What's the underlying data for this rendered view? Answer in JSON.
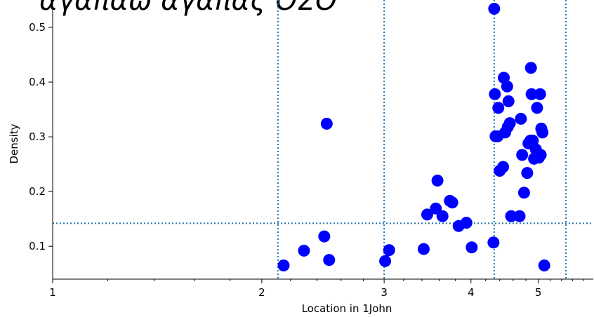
{
  "chart_data": {
    "type": "scatter",
    "title": "αγαπάω ἀγάπας ΘΣΘ",
    "xlabel": "Location in 1John",
    "ylabel": "Density",
    "x_scale": "log",
    "xlim": [
      1.0,
      6.0
    ],
    "ylim": [
      0.04,
      0.55
    ],
    "x_ticks": [
      1,
      2,
      3,
      4,
      5
    ],
    "x_tick_labels": [
      "1",
      "2",
      "3",
      "4",
      "5"
    ],
    "y_ticks": [
      0.1,
      0.2,
      0.3,
      0.4,
      0.5
    ],
    "y_tick_labels": [
      "0.1",
      "0.2",
      "0.3",
      "0.4",
      "0.5"
    ],
    "grid": false,
    "vertical_lines": [
      2.11,
      3.0,
      4.32,
      5.48
    ],
    "horizontal_lines": [
      0.142
    ],
    "marker_color": "#0000ff",
    "reference_line_color": "#1f77b4",
    "points": [
      [
        2.15,
        0.065
      ],
      [
        2.3,
        0.092
      ],
      [
        2.46,
        0.118
      ],
      [
        2.48,
        0.324
      ],
      [
        2.5,
        0.075
      ],
      [
        3.01,
        0.073
      ],
      [
        3.05,
        0.093
      ],
      [
        3.42,
        0.095
      ],
      [
        3.46,
        0.158
      ],
      [
        3.56,
        0.169
      ],
      [
        3.58,
        0.22
      ],
      [
        3.64,
        0.155
      ],
      [
        3.73,
        0.183
      ],
      [
        3.76,
        0.18
      ],
      [
        3.84,
        0.137
      ],
      [
        3.94,
        0.143
      ],
      [
        4.01,
        0.098
      ],
      [
        4.31,
        0.107
      ],
      [
        4.32,
        0.534
      ],
      [
        4.33,
        0.378
      ],
      [
        4.34,
        0.301
      ],
      [
        4.37,
        0.301
      ],
      [
        4.38,
        0.353
      ],
      [
        4.4,
        0.238
      ],
      [
        4.45,
        0.245
      ],
      [
        4.46,
        0.408
      ],
      [
        4.48,
        0.308
      ],
      [
        4.51,
        0.392
      ],
      [
        4.52,
        0.318
      ],
      [
        4.53,
        0.365
      ],
      [
        4.55,
        0.325
      ],
      [
        4.57,
        0.155
      ],
      [
        4.7,
        0.155
      ],
      [
        4.72,
        0.333
      ],
      [
        4.74,
        0.267
      ],
      [
        4.77,
        0.198
      ],
      [
        4.82,
        0.234
      ],
      [
        4.84,
        0.288
      ],
      [
        4.87,
        0.293
      ],
      [
        4.88,
        0.426
      ],
      [
        4.89,
        0.378
      ],
      [
        4.91,
        0.293
      ],
      [
        4.93,
        0.26
      ],
      [
        4.96,
        0.277
      ],
      [
        4.98,
        0.353
      ],
      [
        5.01,
        0.262
      ],
      [
        5.03,
        0.378
      ],
      [
        5.04,
        0.267
      ],
      [
        5.05,
        0.315
      ],
      [
        5.07,
        0.308
      ],
      [
        5.1,
        0.065
      ]
    ]
  }
}
